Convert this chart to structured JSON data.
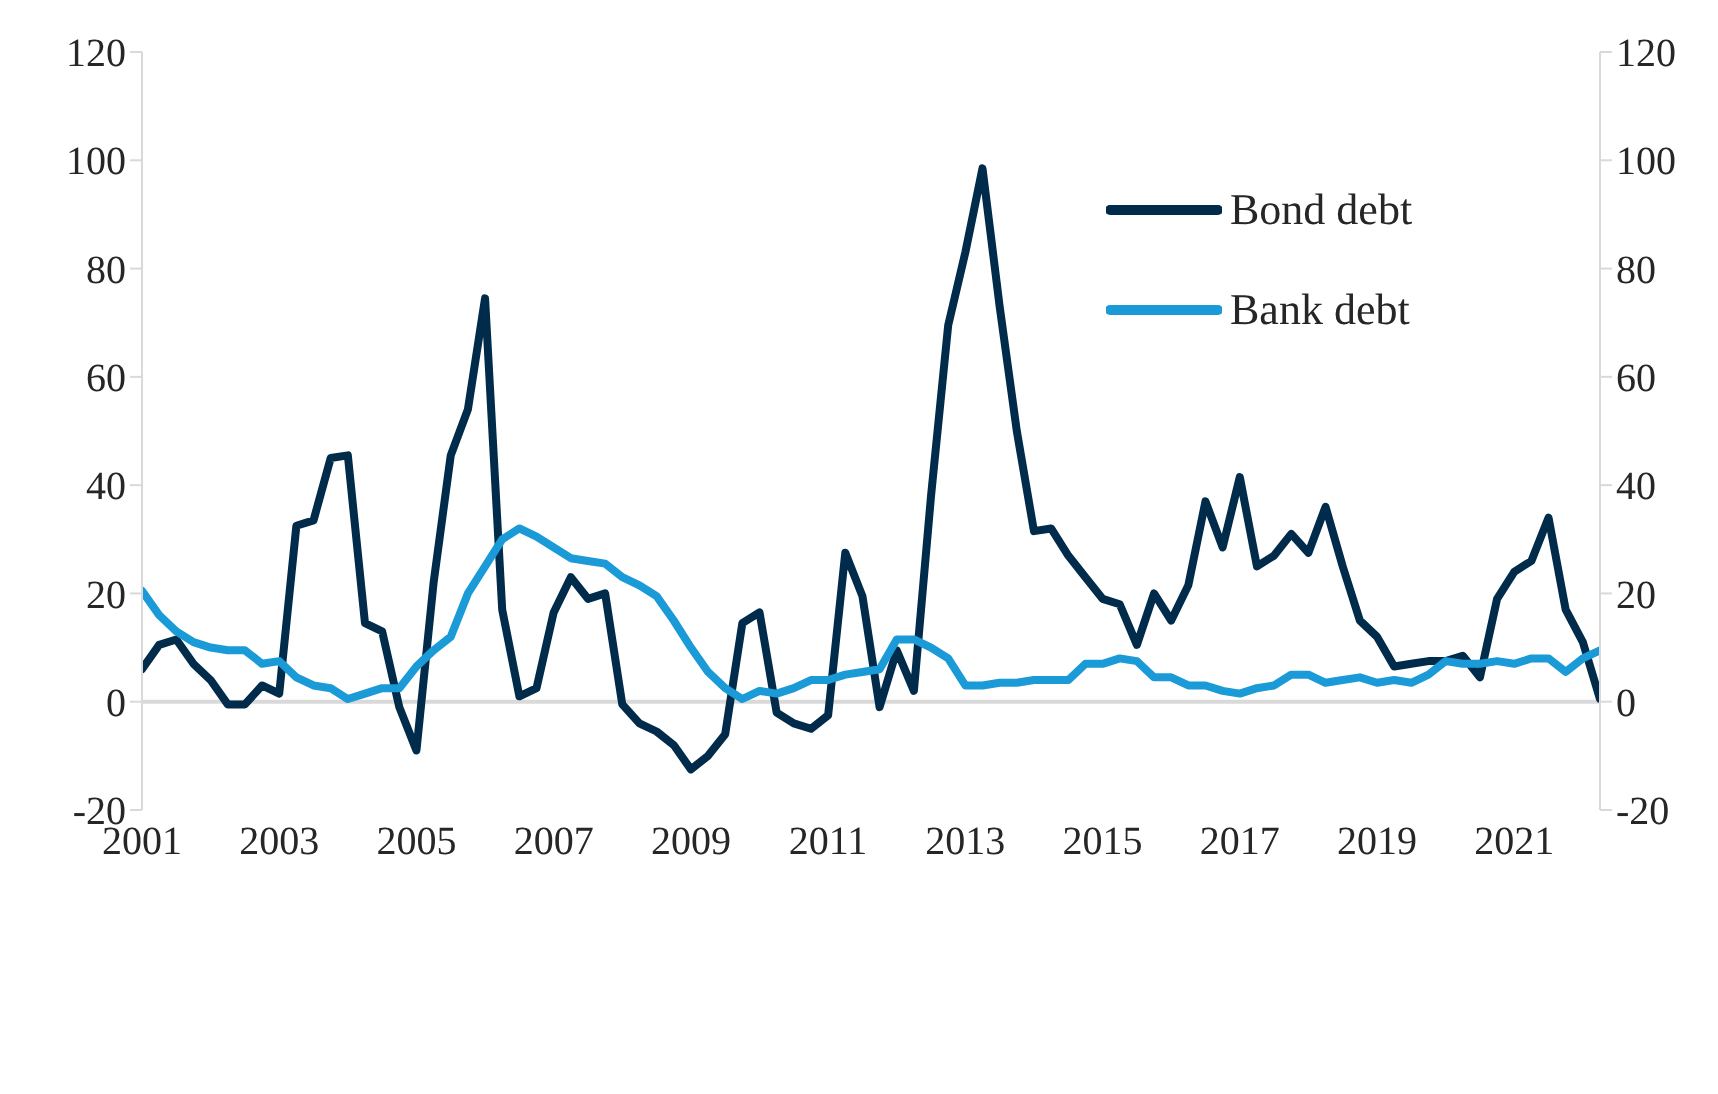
{
  "chart_data": {
    "type": "line",
    "x": [
      2001,
      2001.25,
      2001.5,
      2001.75,
      2002,
      2002.25,
      2002.5,
      2002.75,
      2003,
      2003.25,
      2003.5,
      2003.75,
      2004,
      2004.25,
      2004.5,
      2004.75,
      2005,
      2005.25,
      2005.5,
      2005.75,
      2006,
      2006.25,
      2006.5,
      2006.75,
      2007,
      2007.25,
      2007.5,
      2007.75,
      2008,
      2008.25,
      2008.5,
      2008.75,
      2009,
      2009.25,
      2009.5,
      2009.75,
      2010,
      2010.25,
      2010.5,
      2010.75,
      2011,
      2011.25,
      2011.5,
      2011.75,
      2012,
      2012.25,
      2012.5,
      2012.75,
      2013,
      2013.25,
      2013.5,
      2013.75,
      2014,
      2014.25,
      2014.5,
      2014.75,
      2015,
      2015.25,
      2015.5,
      2015.75,
      2016,
      2016.25,
      2016.5,
      2016.75,
      2017,
      2017.25,
      2017.5,
      2017.75,
      2018,
      2018.25,
      2018.5,
      2018.75,
      2019,
      2019.25,
      2019.5,
      2019.75,
      2020,
      2020.25,
      2020.5,
      2020.75,
      2021,
      2021.25,
      2021.5,
      2021.75,
      2022,
      2022.25
    ],
    "series": [
      {
        "name": "Bond debt",
        "color": "#002b4a",
        "values": [
          6,
          10.5,
          11.5,
          7,
          4,
          -0.5,
          -0.5,
          3,
          1.5,
          32.5,
          33.5,
          45,
          45.5,
          14.5,
          13,
          -1,
          -9,
          22,
          45.5,
          54,
          74.5,
          17,
          1,
          2.5,
          16.5,
          23,
          19,
          20,
          -0.5,
          -4,
          -5.5,
          -8,
          -12.5,
          -10,
          -6,
          14.5,
          16.5,
          -2,
          -4,
          -5,
          -2.5,
          27.5,
          19.5,
          -1,
          9.5,
          2,
          38,
          69.5,
          83,
          98.5,
          73,
          50,
          31.5,
          32,
          27,
          23,
          19,
          18,
          10.5,
          20,
          15,
          21.5,
          37,
          28.5,
          41.5,
          25,
          27,
          31,
          27.5,
          36,
          25,
          15,
          12,
          6.5,
          7,
          7.5,
          7.5,
          8.5,
          4.5,
          19,
          24,
          26,
          34,
          17,
          11,
          0.5
        ]
      },
      {
        "name": "Bank debt",
        "color": "#1a9ad6",
        "values": [
          20.5,
          16,
          13,
          11,
          10,
          9.5,
          9.5,
          7,
          7.5,
          4.5,
          3,
          2.5,
          0.5,
          1.5,
          2.5,
          2.5,
          6.5,
          9.5,
          12,
          20,
          25,
          30,
          32,
          30.5,
          28.5,
          26.5,
          26,
          25.5,
          23,
          21.5,
          19.5,
          15,
          10,
          5.5,
          2.5,
          0.5,
          2,
          1.5,
          2.5,
          4,
          4,
          5,
          5.5,
          6,
          11.5,
          11.5,
          10,
          8,
          3,
          3,
          3.5,
          3.5,
          4,
          4,
          4,
          7,
          7,
          8,
          7.5,
          4.5,
          4.5,
          3,
          3,
          2,
          1.5,
          2.5,
          3,
          5,
          5,
          3.5,
          4,
          4.5,
          3.5,
          4,
          3.5,
          5,
          7.5,
          7,
          7,
          7.5,
          7,
          8,
          8,
          5.5,
          8,
          9.5
        ]
      }
    ],
    "xlim": [
      2001,
      2022.25
    ],
    "xticks": [
      2001,
      2003,
      2005,
      2007,
      2009,
      2011,
      2013,
      2015,
      2017,
      2019,
      2021
    ],
    "ylim": [
      -20,
      120
    ],
    "yticks": [
      -20,
      0,
      20,
      40,
      60,
      80,
      100,
      120
    ],
    "y2lim": [
      -20,
      120
    ],
    "y2ticks": [
      -20,
      0,
      20,
      40,
      60,
      80,
      100,
      120
    ],
    "ref_lines": [
      {
        "axis": "y",
        "value": 0,
        "color": "#d9d9d9"
      }
    ],
    "legend": "top right",
    "line_style": "solid"
  }
}
